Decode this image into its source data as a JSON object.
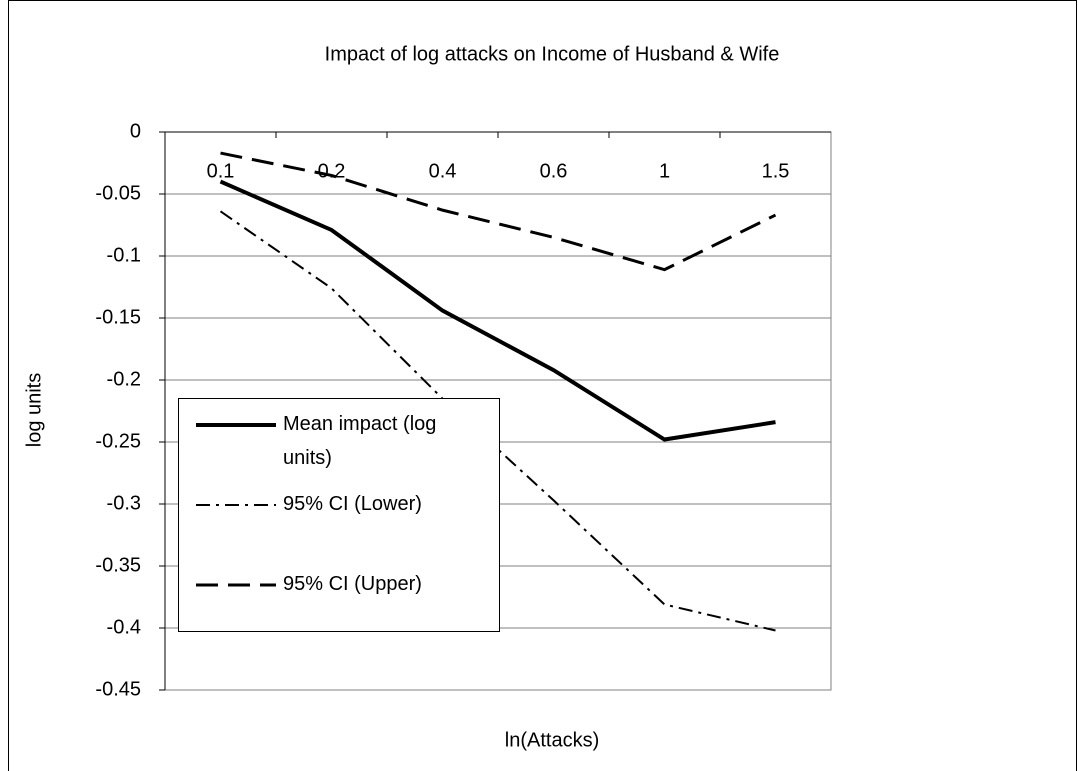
{
  "chart_data": {
    "type": "line",
    "title": "Impact of log attacks on Income of Husband & Wife",
    "x_label": "ln(Attacks)",
    "y_label": "log units",
    "categories": [
      "0.1",
      "0.2",
      "0.4",
      "0.6",
      "1",
      "1.5"
    ],
    "series": [
      {
        "name": "Mean impact (log units)",
        "color": "#000000",
        "line_style": "solid",
        "values": [
          -0.04,
          -0.079,
          -0.144,
          -0.192,
          -0.248,
          -0.234
        ]
      },
      {
        "name": "95% CI (Lower)",
        "color": "#000000",
        "line_style": "dashdot",
        "values": [
          -0.064,
          -0.126,
          -0.215,
          -0.297,
          -0.381,
          -0.402
        ]
      },
      {
        "name": "95% CI (Upper)",
        "color": "#000000",
        "line_style": "dash",
        "values": [
          -0.017,
          -0.035,
          -0.063,
          -0.085,
          -0.111,
          -0.067
        ]
      }
    ],
    "ylim": [
      -0.45,
      0
    ],
    "yticks": [
      0,
      -0.05,
      -0.1,
      -0.15,
      -0.2,
      -0.25,
      -0.3,
      -0.35,
      -0.4,
      -0.45
    ],
    "grid": true,
    "legend": "left"
  }
}
